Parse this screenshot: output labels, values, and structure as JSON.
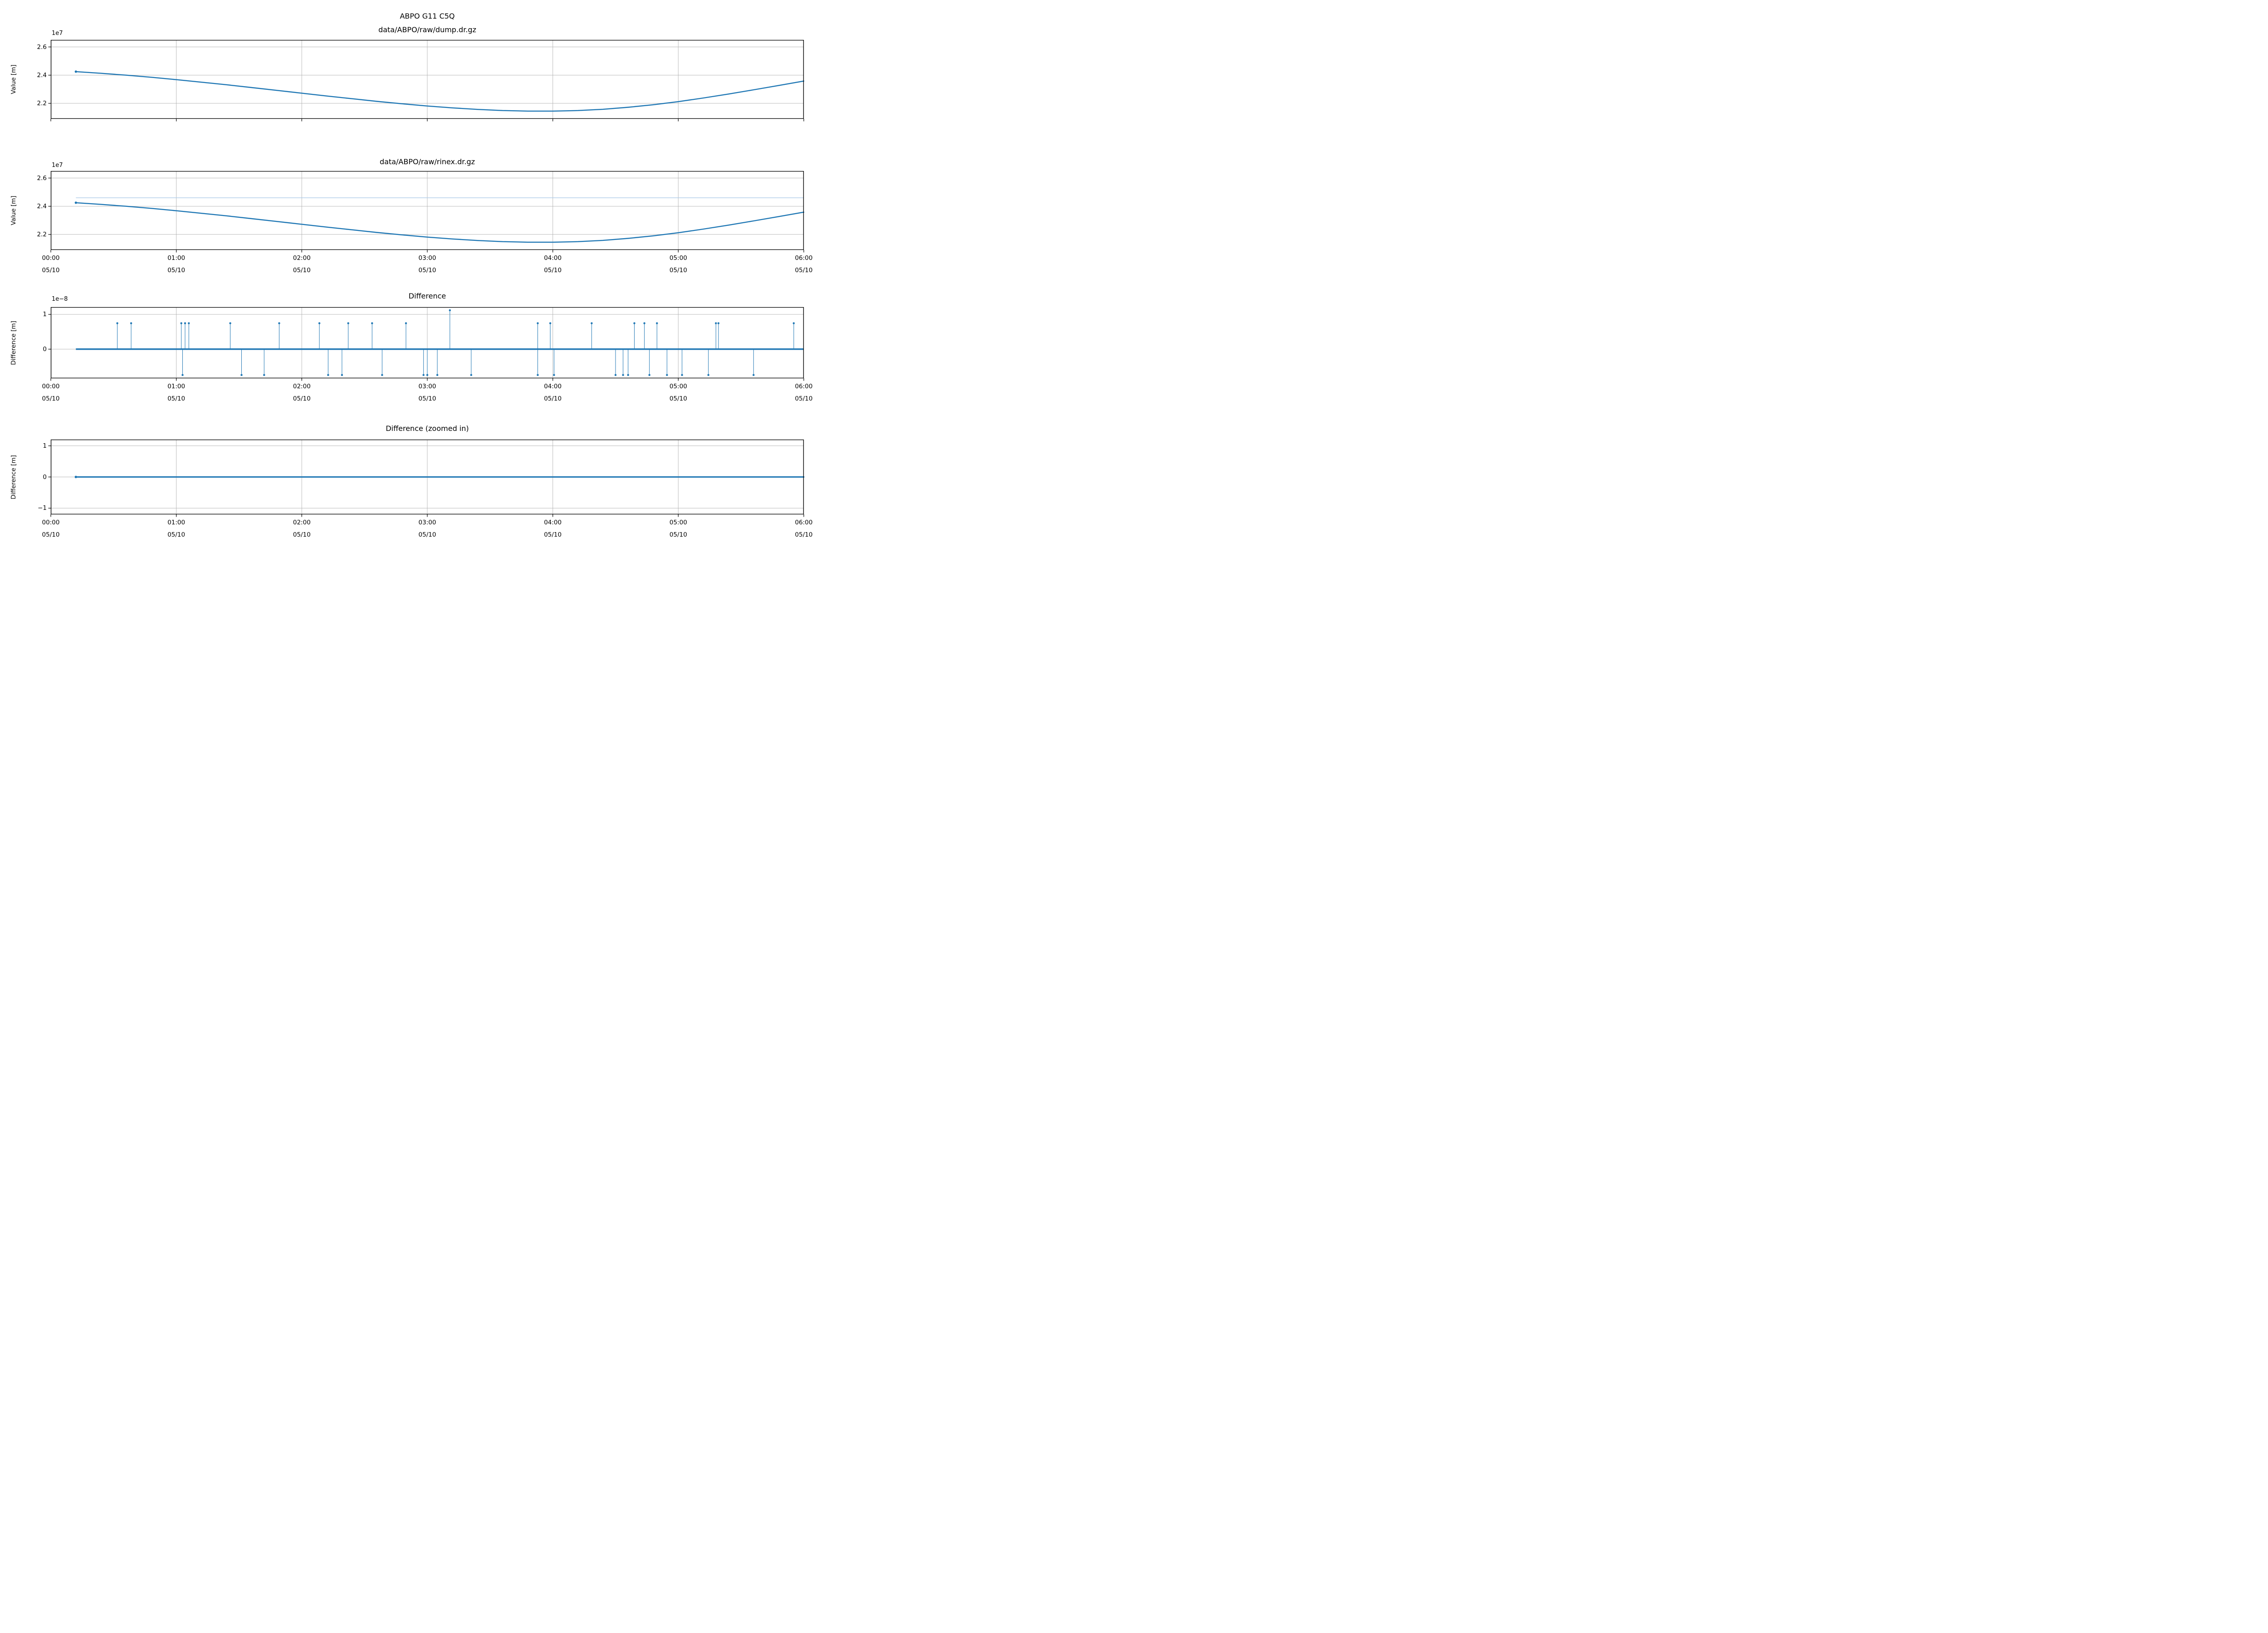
{
  "figure": {
    "colors": {
      "line": "#1f77b4",
      "faint_line": "#a8c8e8",
      "grid": "#b0b0b0",
      "axes": "#000000",
      "background": "#ffffff"
    }
  },
  "chart_data": [
    {
      "id": "dump",
      "type": "line",
      "title_lines": [
        "ABPO G11 C5Q",
        "data/ABPO/raw/dump.dr.gz"
      ],
      "ylabel": "Value [m]",
      "offset_label": "1e7",
      "xlim": [
        0,
        6
      ],
      "ylim": [
        20900000,
        26500000
      ],
      "yticks": [
        {
          "v": 22000000,
          "label": "2.2"
        },
        {
          "v": 24000000,
          "label": "2.4"
        },
        {
          "v": 26000000,
          "label": "2.6"
        }
      ],
      "xticks": [
        {
          "v": 0
        },
        {
          "v": 1
        },
        {
          "v": 2
        },
        {
          "v": 3
        },
        {
          "v": 4
        },
        {
          "v": 5
        },
        {
          "v": 6
        }
      ],
      "show_xtick_labels": false,
      "line_width": 2.4,
      "points": [
        [
          0.2,
          24250000
        ],
        [
          0.4,
          24130000
        ],
        [
          0.6,
          24000000
        ],
        [
          0.8,
          23850000
        ],
        [
          1.0,
          23680000
        ],
        [
          1.2,
          23500000
        ],
        [
          1.4,
          23320000
        ],
        [
          1.6,
          23120000
        ],
        [
          1.8,
          22920000
        ],
        [
          2.0,
          22720000
        ],
        [
          2.2,
          22520000
        ],
        [
          2.4,
          22330000
        ],
        [
          2.6,
          22140000
        ],
        [
          2.8,
          21970000
        ],
        [
          3.0,
          21810000
        ],
        [
          3.2,
          21680000
        ],
        [
          3.4,
          21570000
        ],
        [
          3.6,
          21490000
        ],
        [
          3.8,
          21450000
        ],
        [
          4.0,
          21450000
        ],
        [
          4.2,
          21490000
        ],
        [
          4.4,
          21580000
        ],
        [
          4.6,
          21720000
        ],
        [
          4.8,
          21900000
        ],
        [
          5.0,
          22120000
        ],
        [
          5.2,
          22380000
        ],
        [
          5.4,
          22660000
        ],
        [
          5.6,
          22960000
        ],
        [
          5.8,
          23270000
        ],
        [
          6.0,
          23580000
        ]
      ]
    },
    {
      "id": "rinex",
      "type": "line",
      "title_lines": [
        "data/ABPO/raw/rinex.dr.gz"
      ],
      "ylabel": "Value [m]",
      "offset_label": "1e7",
      "xlim": [
        0,
        6
      ],
      "ylim": [
        20900000,
        26500000
      ],
      "yticks": [
        {
          "v": 22000000,
          "label": "2.2"
        },
        {
          "v": 24000000,
          "label": "2.4"
        },
        {
          "v": 26000000,
          "label": "2.6"
        }
      ],
      "xticks": [
        {
          "v": 0,
          "line1": "00:00",
          "line2": "05/10"
        },
        {
          "v": 1,
          "line1": "01:00",
          "line2": "05/10"
        },
        {
          "v": 2,
          "line1": "02:00",
          "line2": "05/10"
        },
        {
          "v": 3,
          "line1": "03:00",
          "line2": "05/10"
        },
        {
          "v": 4,
          "line1": "04:00",
          "line2": "05/10"
        },
        {
          "v": 5,
          "line1": "05:00",
          "line2": "05/10"
        },
        {
          "v": 6,
          "line1": "06:00",
          "line2": "05/10"
        }
      ],
      "show_xtick_labels": true,
      "line_width": 2.4,
      "flat_line_y": 24600000,
      "points": [
        [
          0.2,
          24250000
        ],
        [
          0.4,
          24130000
        ],
        [
          0.6,
          24000000
        ],
        [
          0.8,
          23850000
        ],
        [
          1.0,
          23680000
        ],
        [
          1.2,
          23500000
        ],
        [
          1.4,
          23320000
        ],
        [
          1.6,
          23120000
        ],
        [
          1.8,
          22920000
        ],
        [
          2.0,
          22720000
        ],
        [
          2.2,
          22520000
        ],
        [
          2.4,
          22330000
        ],
        [
          2.6,
          22140000
        ],
        [
          2.8,
          21970000
        ],
        [
          3.0,
          21810000
        ],
        [
          3.2,
          21680000
        ],
        [
          3.4,
          21570000
        ],
        [
          3.6,
          21490000
        ],
        [
          3.8,
          21450000
        ],
        [
          4.0,
          21450000
        ],
        [
          4.2,
          21490000
        ],
        [
          4.4,
          21580000
        ],
        [
          4.6,
          21720000
        ],
        [
          4.8,
          21900000
        ],
        [
          5.0,
          22120000
        ],
        [
          5.2,
          22380000
        ],
        [
          5.4,
          22660000
        ],
        [
          5.6,
          22960000
        ],
        [
          5.8,
          23270000
        ],
        [
          6.0,
          23580000
        ]
      ]
    },
    {
      "id": "difference",
      "type": "stem",
      "title_lines": [
        "Difference"
      ],
      "ylabel": "Difference [m]",
      "offset_label": "1e−8",
      "xlim": [
        0,
        6
      ],
      "ylim": [
        -8.4e-09,
        1.21e-08
      ],
      "yticks": [
        {
          "v": 0,
          "label": "0"
        },
        {
          "v": 1e-08,
          "label": "1"
        }
      ],
      "xticks": [
        {
          "v": 0,
          "line1": "00:00",
          "line2": "05/10"
        },
        {
          "v": 1,
          "line1": "01:00",
          "line2": "05/10"
        },
        {
          "v": 2,
          "line1": "02:00",
          "line2": "05/10"
        },
        {
          "v": 3,
          "line1": "03:00",
          "line2": "05/10"
        },
        {
          "v": 4,
          "line1": "04:00",
          "line2": "05/10"
        },
        {
          "v": 5,
          "line1": "05:00",
          "line2": "05/10"
        },
        {
          "v": 6,
          "line1": "06:00",
          "line2": "05/10"
        }
      ],
      "show_xtick_labels": true,
      "baseline": [
        0.2,
        6.0
      ],
      "baseline_width": 3.4,
      "stems": [
        {
          "t": 0.53,
          "v": 7.45e-09
        },
        {
          "t": 0.64,
          "v": 7.45e-09
        },
        {
          "t": 1.04,
          "v": 7.45e-09
        },
        {
          "t": 1.05,
          "v": -7.45e-09
        },
        {
          "t": 1.07,
          "v": 7.45e-09
        },
        {
          "t": 1.1,
          "v": 7.45e-09
        },
        {
          "t": 1.43,
          "v": 7.45e-09
        },
        {
          "t": 1.52,
          "v": -7.45e-09
        },
        {
          "t": 1.7,
          "v": -7.45e-09
        },
        {
          "t": 1.82,
          "v": 7.45e-09
        },
        {
          "t": 2.14,
          "v": 7.45e-09
        },
        {
          "t": 2.21,
          "v": -7.45e-09
        },
        {
          "t": 2.32,
          "v": -7.45e-09
        },
        {
          "t": 2.37,
          "v": 7.45e-09
        },
        {
          "t": 2.56,
          "v": 7.45e-09
        },
        {
          "t": 2.64,
          "v": -7.45e-09
        },
        {
          "t": 2.83,
          "v": 7.45e-09
        },
        {
          "t": 2.97,
          "v": -7.45e-09
        },
        {
          "t": 3.0,
          "v": -7.45e-09
        },
        {
          "t": 3.08,
          "v": -7.45e-09
        },
        {
          "t": 3.18,
          "v": 1.118e-08
        },
        {
          "t": 3.35,
          "v": -7.45e-09
        },
        {
          "t": 3.88,
          "v": 7.45e-09
        },
        {
          "t": 3.88,
          "v": -7.45e-09
        },
        {
          "t": 3.98,
          "v": 7.45e-09
        },
        {
          "t": 4.01,
          "v": -7.45e-09
        },
        {
          "t": 4.31,
          "v": 7.45e-09
        },
        {
          "t": 4.5,
          "v": -7.45e-09
        },
        {
          "t": 4.56,
          "v": -7.45e-09
        },
        {
          "t": 4.6,
          "v": -7.45e-09
        },
        {
          "t": 4.65,
          "v": 7.45e-09
        },
        {
          "t": 4.73,
          "v": 7.45e-09
        },
        {
          "t": 4.77,
          "v": -7.45e-09
        },
        {
          "t": 4.83,
          "v": 7.45e-09
        },
        {
          "t": 4.91,
          "v": -7.45e-09
        },
        {
          "t": 5.03,
          "v": -7.45e-09
        },
        {
          "t": 5.24,
          "v": -7.45e-09
        },
        {
          "t": 5.3,
          "v": 7.45e-09
        },
        {
          "t": 5.32,
          "v": 7.45e-09
        },
        {
          "t": 5.6,
          "v": -7.45e-09
        },
        {
          "t": 5.92,
          "v": 7.45e-09
        }
      ]
    },
    {
      "id": "difference-zoomed",
      "type": "line",
      "title_lines": [
        "Difference (zoomed in)"
      ],
      "ylabel": "Difference [m]",
      "offset_label": "",
      "xlim": [
        0,
        6
      ],
      "ylim": [
        -1.2,
        1.2
      ],
      "yticks": [
        {
          "v": -1,
          "label": "−1"
        },
        {
          "v": 0,
          "label": "0"
        },
        {
          "v": 1,
          "label": "1"
        }
      ],
      "xticks": [
        {
          "v": 0,
          "line1": "00:00",
          "line2": "05/10"
        },
        {
          "v": 1,
          "line1": "01:00",
          "line2": "05/10"
        },
        {
          "v": 2,
          "line1": "02:00",
          "line2": "05/10"
        },
        {
          "v": 3,
          "line1": "03:00",
          "line2": "05/10"
        },
        {
          "v": 4,
          "line1": "04:00",
          "line2": "05/10"
        },
        {
          "v": 5,
          "line1": "05:00",
          "line2": "05/10"
        },
        {
          "v": 6,
          "line1": "06:00",
          "line2": "05/10"
        }
      ],
      "show_xtick_labels": true,
      "line_width": 3.0,
      "points": [
        [
          0.2,
          0
        ],
        [
          6.0,
          0
        ]
      ]
    }
  ]
}
